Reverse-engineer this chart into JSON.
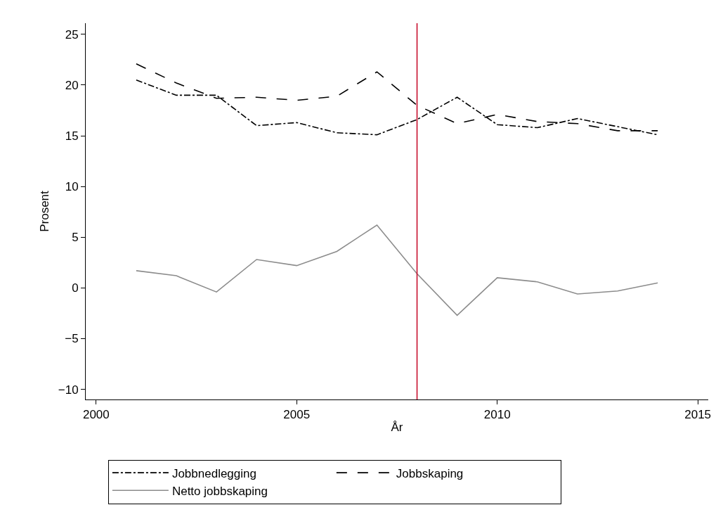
{
  "chart_data": {
    "type": "line",
    "xlabel": "År",
    "ylabel": "Prosent",
    "x": [
      2001,
      2002,
      2003,
      2004,
      2005,
      2006,
      2007,
      2008,
      2009,
      2010,
      2011,
      2012,
      2013,
      2014
    ],
    "series": [
      {
        "name": "Jobbnedlegging",
        "color": "#000000",
        "line_style": "dashdot",
        "values": [
          20.5,
          19.0,
          19.0,
          16.0,
          16.3,
          15.3,
          15.1,
          16.6,
          18.8,
          16.1,
          15.8,
          16.7,
          15.9,
          15.1
        ]
      },
      {
        "name": "Jobbskaping",
        "color": "#000000",
        "line_style": "dashed",
        "values": [
          22.1,
          20.2,
          18.7,
          18.8,
          18.5,
          18.9,
          21.3,
          18.0,
          16.2,
          17.1,
          16.4,
          16.2,
          15.5,
          15.5
        ]
      },
      {
        "name": "Netto jobbskaping",
        "color": "#8c8c8c",
        "line_style": "solid",
        "values": [
          1.7,
          1.2,
          -0.4,
          2.8,
          2.2,
          3.6,
          6.2,
          1.4,
          -2.7,
          1.0,
          0.6,
          -0.6,
          -0.3,
          0.5
        ]
      }
    ],
    "xlim": [
      1999.74,
      2015.26
    ],
    "xticks": [
      2000,
      2005,
      2010,
      2015
    ],
    "ylim": [
      -11.0,
      26.1
    ],
    "yticks": [
      -10,
      -5,
      0,
      5,
      10,
      15,
      20,
      25
    ],
    "ref_lines": [
      {
        "axis": "x",
        "value": 2008,
        "color": "#c8102e"
      }
    ],
    "grid": false,
    "legend": "bottom",
    "marker": "none"
  }
}
